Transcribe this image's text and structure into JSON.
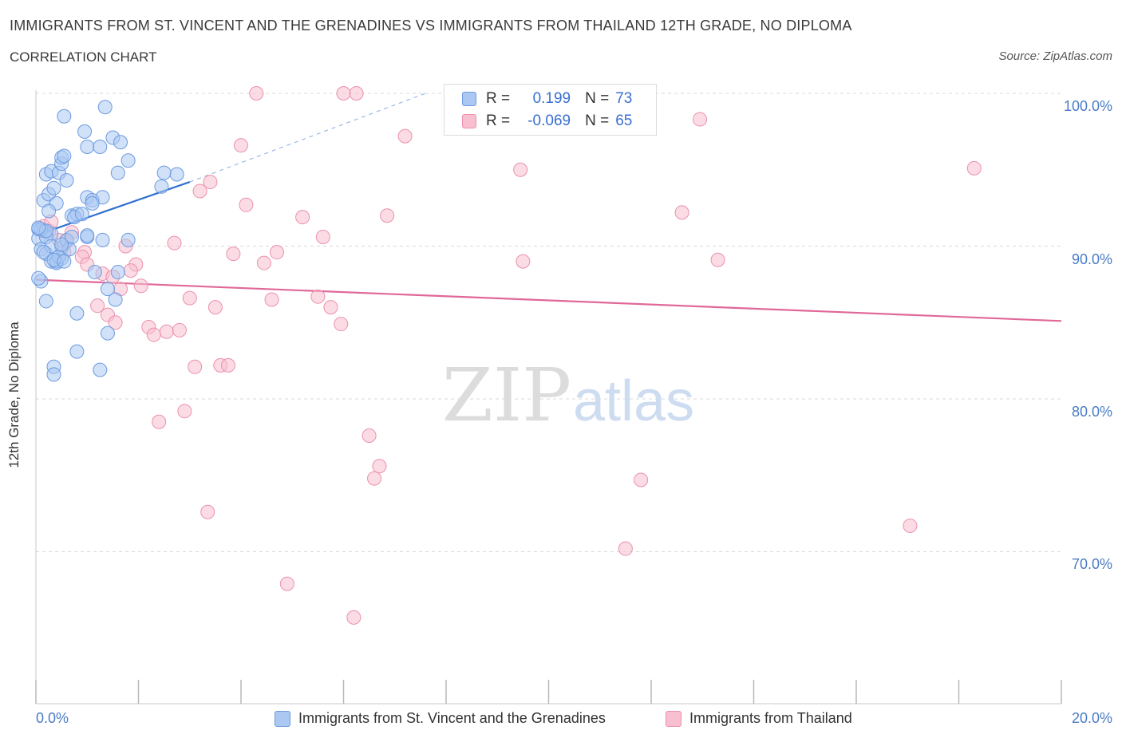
{
  "header": {
    "title": "IMMIGRANTS FROM ST. VINCENT AND THE GRENADINES VS IMMIGRANTS FROM THAILAND 12TH GRADE, NO DIPLOMA",
    "subtitle": "CORRELATION CHART",
    "source": "Source: ZipAtlas.com"
  },
  "watermark": {
    "zip": "ZIP",
    "atlas": "atlas"
  },
  "legend": {
    "r_label": "R =",
    "n_label": "N =",
    "series": [
      {
        "r": "0.199",
        "n": "73"
      },
      {
        "r": "-0.069",
        "n": "65"
      }
    ]
  },
  "colors": {
    "blue_fill": "#aac8f2",
    "blue_stroke": "#6d9be0",
    "blue_line": "#3070d0",
    "pink_fill": "#f7bfd0",
    "pink_stroke": "#ec90ad",
    "pink_line": "#e06898",
    "tick_text": "#4a7cc7",
    "grid": "#d9d9d9"
  },
  "chart_data": {
    "type": "scatter",
    "title": "IMMIGRANTS FROM ST. VINCENT AND THE GRENADINES VS IMMIGRANTS FROM THAILAND 12TH GRADE, NO DIPLOMA",
    "subtitle": "CORRELATION CHART",
    "xlabel": "",
    "ylabel": "12th Grade, No Diploma",
    "xlim": [
      0,
      20
    ],
    "ylim": [
      60,
      100
    ],
    "x_tick_labels": [
      {
        "value": 0,
        "label": "0.0%"
      },
      {
        "value": 20,
        "label": "20.0%"
      }
    ],
    "y_tick_labels": [
      {
        "value": 70,
        "label": "70.0%"
      },
      {
        "value": 80,
        "label": "80.0%"
      },
      {
        "value": 90,
        "label": "90.0%"
      },
      {
        "value": 100,
        "label": "100.0%"
      }
    ],
    "grid": true,
    "legend_position": "top-center",
    "series": [
      {
        "name": "Immigrants from St. Vincent and the Grenadines",
        "color": "#6d9be0",
        "trend": {
          "x": [
            0,
            3.0
          ],
          "y": [
            90.7,
            94.2
          ],
          "dashed_to": [
            7.6,
            100.0
          ]
        },
        "points": [
          [
            0.05,
            91.1
          ],
          [
            0.05,
            90.5
          ],
          [
            0.1,
            89.8
          ],
          [
            0.2,
            89.5
          ],
          [
            0.15,
            91.0
          ],
          [
            0.3,
            90.8
          ],
          [
            0.3,
            89.0
          ],
          [
            0.4,
            88.9
          ],
          [
            0.5,
            89.2
          ],
          [
            0.5,
            89.9
          ],
          [
            0.2,
            90.6
          ],
          [
            0.1,
            87.7
          ],
          [
            0.05,
            87.9
          ],
          [
            0.2,
            86.4
          ],
          [
            0.6,
            90.4
          ],
          [
            0.7,
            92.0
          ],
          [
            0.8,
            92.1
          ],
          [
            0.75,
            91.9
          ],
          [
            0.9,
            92.1
          ],
          [
            0.15,
            93.0
          ],
          [
            0.25,
            93.4
          ],
          [
            0.35,
            93.8
          ],
          [
            0.4,
            92.8
          ],
          [
            0.2,
            94.7
          ],
          [
            0.3,
            94.9
          ],
          [
            0.45,
            94.8
          ],
          [
            0.6,
            94.3
          ],
          [
            0.5,
            95.4
          ],
          [
            0.5,
            95.8
          ],
          [
            0.55,
            95.9
          ],
          [
            1.0,
            93.2
          ],
          [
            1.1,
            93.0
          ],
          [
            1.3,
            93.2
          ],
          [
            1.1,
            92.8
          ],
          [
            1.0,
            90.6
          ],
          [
            1.0,
            90.7
          ],
          [
            1.3,
            90.4
          ],
          [
            1.8,
            90.4
          ],
          [
            1.6,
            88.3
          ],
          [
            1.15,
            88.3
          ],
          [
            1.4,
            87.2
          ],
          [
            1.55,
            86.5
          ],
          [
            0.8,
            85.6
          ],
          [
            1.4,
            84.3
          ],
          [
            0.8,
            83.1
          ],
          [
            0.35,
            82.1
          ],
          [
            0.35,
            81.6
          ],
          [
            1.25,
            81.9
          ],
          [
            0.95,
            97.5
          ],
          [
            1.0,
            96.5
          ],
          [
            1.25,
            96.5
          ],
          [
            1.5,
            97.1
          ],
          [
            1.65,
            96.8
          ],
          [
            1.8,
            95.6
          ],
          [
            1.6,
            94.8
          ],
          [
            0.55,
            98.5
          ],
          [
            1.35,
            99.1
          ],
          [
            2.5,
            94.8
          ],
          [
            2.75,
            94.7
          ],
          [
            2.45,
            93.9
          ],
          [
            0.1,
            91.1
          ],
          [
            0.2,
            91.0
          ],
          [
            0.4,
            89.0
          ],
          [
            0.3,
            90.0
          ],
          [
            0.15,
            89.6
          ],
          [
            0.45,
            89.3
          ],
          [
            0.7,
            90.6
          ],
          [
            0.65,
            89.8
          ],
          [
            0.25,
            92.3
          ],
          [
            0.05,
            91.2
          ],
          [
            0.35,
            89.1
          ],
          [
            0.5,
            90.1
          ],
          [
            0.55,
            89.0
          ]
        ]
      },
      {
        "name": "Immigrants from Thailand",
        "color": "#ec90ad",
        "trend": {
          "x": [
            0,
            20
          ],
          "y": [
            87.8,
            85.1
          ]
        },
        "points": [
          [
            0.15,
            91.3
          ],
          [
            0.25,
            91.0
          ],
          [
            0.45,
            90.4
          ],
          [
            0.55,
            89.6
          ],
          [
            0.3,
            91.6
          ],
          [
            0.7,
            90.9
          ],
          [
            0.95,
            89.6
          ],
          [
            0.9,
            89.3
          ],
          [
            1.0,
            88.8
          ],
          [
            1.3,
            88.2
          ],
          [
            1.5,
            88.0
          ],
          [
            1.65,
            87.2
          ],
          [
            1.75,
            90.0
          ],
          [
            1.95,
            88.8
          ],
          [
            1.85,
            88.4
          ],
          [
            1.2,
            86.1
          ],
          [
            1.4,
            85.5
          ],
          [
            1.55,
            85.0
          ],
          [
            2.2,
            84.7
          ],
          [
            2.3,
            84.2
          ],
          [
            2.55,
            84.4
          ],
          [
            2.8,
            84.5
          ],
          [
            3.0,
            86.6
          ],
          [
            3.5,
            86.0
          ],
          [
            3.1,
            82.1
          ],
          [
            3.6,
            82.2
          ],
          [
            3.75,
            82.2
          ],
          [
            2.4,
            78.5
          ],
          [
            2.9,
            79.2
          ],
          [
            3.35,
            72.6
          ],
          [
            3.2,
            93.6
          ],
          [
            3.4,
            94.2
          ],
          [
            2.7,
            90.2
          ],
          [
            3.85,
            89.5
          ],
          [
            4.0,
            96.6
          ],
          [
            4.1,
            92.7
          ],
          [
            4.45,
            88.9
          ],
          [
            4.6,
            86.5
          ],
          [
            4.9,
            67.9
          ],
          [
            4.7,
            89.6
          ],
          [
            5.2,
            91.9
          ],
          [
            5.5,
            86.7
          ],
          [
            5.6,
            90.6
          ],
          [
            5.75,
            86.0
          ],
          [
            5.95,
            84.9
          ],
          [
            6.2,
            65.7
          ],
          [
            6.5,
            77.6
          ],
          [
            6.6,
            74.8
          ],
          [
            6.7,
            75.6
          ],
          [
            6.85,
            92.0
          ],
          [
            7.2,
            97.2
          ],
          [
            4.3,
            100.0
          ],
          [
            6.0,
            100.0
          ],
          [
            6.25,
            100.0
          ],
          [
            9.45,
            95.0
          ],
          [
            9.5,
            89.0
          ],
          [
            11.5,
            70.2
          ],
          [
            11.8,
            74.7
          ],
          [
            12.6,
            92.2
          ],
          [
            12.95,
            98.3
          ],
          [
            13.3,
            89.1
          ],
          [
            17.05,
            71.7
          ],
          [
            18.3,
            95.1
          ],
          [
            0.6,
            90.3
          ],
          [
            2.05,
            87.4
          ]
        ]
      }
    ]
  },
  "bottom_legend": [
    {
      "label": "Immigrants from St. Vincent and the Grenadines"
    },
    {
      "label": "Immigrants from Thailand"
    }
  ]
}
